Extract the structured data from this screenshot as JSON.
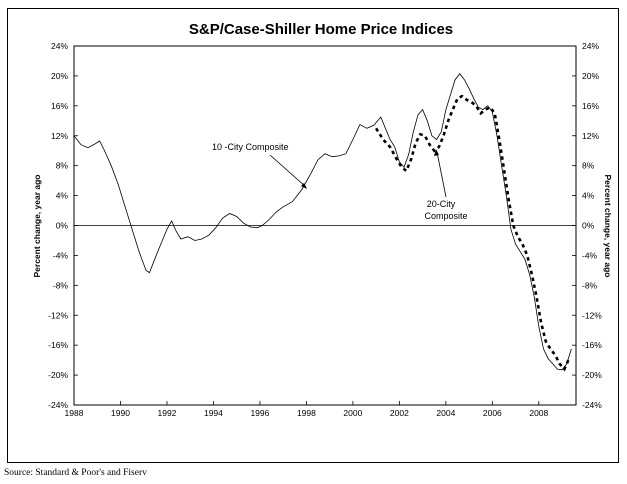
{
  "chart_data": {
    "type": "line",
    "title": "S&P/Case-Shiller Home Price Indices",
    "ylabel_left": "Percent change, year ago",
    "ylabel_right": "Percent change, year ago",
    "xlim": [
      1988,
      2009.6
    ],
    "ylim": [
      -24,
      24
    ],
    "x_ticks": [
      "1988",
      "1990",
      "1992",
      "1994",
      "1996",
      "1998",
      "2000",
      "2002",
      "2004",
      "2006",
      "2008"
    ],
    "y_ticks": [
      "24%",
      "20%",
      "16%",
      "12%",
      "8%",
      "4%",
      "0%",
      "-4%",
      "-8%",
      "-12%",
      "-16%",
      "-20%",
      "-24%"
    ],
    "grid": false,
    "series": [
      {
        "name": "10 -City Composite",
        "style": "solid",
        "x": [
          1988.0,
          1988.3,
          1988.6,
          1988.9,
          1989.1,
          1989.3,
          1989.6,
          1989.9,
          1990.2,
          1990.5,
          1990.8,
          1991.1,
          1991.25,
          1991.5,
          1991.8,
          1992.0,
          1992.2,
          1992.4,
          1992.6,
          1992.9,
          1993.2,
          1993.5,
          1993.8,
          1994.1,
          1994.4,
          1994.7,
          1995.0,
          1995.3,
          1995.6,
          1995.9,
          1996.1,
          1996.4,
          1996.7,
          1997.0,
          1997.4,
          1997.8,
          1998.2,
          1998.5,
          1998.8,
          1999.1,
          1999.4,
          1999.7,
          2000.0,
          2000.3,
          2000.6,
          2000.9,
          2001.2,
          2001.4,
          2001.6,
          2001.8,
          2002.0,
          2002.2,
          2002.4,
          2002.6,
          2002.8,
          2003.0,
          2003.2,
          2003.4,
          2003.6,
          2003.8,
          2004.0,
          2004.2,
          2004.4,
          2004.6,
          2004.8,
          2005.0,
          2005.2,
          2005.4,
          2005.6,
          2005.8,
          2006.0,
          2006.2,
          2006.4,
          2006.6,
          2006.8,
          2007.0,
          2007.2,
          2007.4,
          2007.6,
          2007.8,
          2008.0,
          2008.2,
          2008.4,
          2008.6,
          2008.8,
          2009.0,
          2009.2,
          2009.4
        ],
        "y": [
          12.0,
          10.8,
          10.4,
          10.9,
          11.3,
          10.1,
          8.0,
          5.5,
          2.5,
          -0.5,
          -3.5,
          -6.0,
          -6.3,
          -4.3,
          -2.0,
          -0.5,
          0.6,
          -0.8,
          -1.8,
          -1.5,
          -2.0,
          -1.8,
          -1.3,
          -0.3,
          1.0,
          1.6,
          1.2,
          0.3,
          -0.2,
          -0.3,
          0.0,
          0.8,
          1.8,
          2.5,
          3.2,
          4.8,
          7.0,
          8.8,
          9.6,
          9.2,
          9.3,
          9.6,
          11.5,
          13.5,
          13.0,
          13.4,
          14.5,
          13.0,
          11.5,
          10.5,
          8.5,
          7.8,
          9.5,
          12.5,
          14.8,
          15.5,
          14.0,
          12.0,
          11.5,
          12.5,
          15.5,
          17.5,
          19.5,
          20.3,
          19.5,
          18.3,
          17.0,
          15.8,
          15.5,
          16.0,
          15.2,
          12.0,
          8.0,
          4.0,
          -0.5,
          -2.5,
          -3.5,
          -4.5,
          -6.5,
          -9.5,
          -13.5,
          -16.5,
          -17.8,
          -18.5,
          -19.2,
          -19.3,
          -18.5,
          -16.5
        ]
      },
      {
        "name": "20-City Composite",
        "style": "dashed",
        "x": [
          2001.0,
          2001.3,
          2001.6,
          2001.9,
          2002.1,
          2002.3,
          2002.5,
          2002.7,
          2002.9,
          2003.1,
          2003.3,
          2003.5,
          2003.7,
          2003.9,
          2004.1,
          2004.3,
          2004.5,
          2004.7,
          2004.9,
          2005.1,
          2005.3,
          2005.5,
          2005.7,
          2005.9,
          2006.1,
          2006.3,
          2006.5,
          2006.7,
          2006.9,
          2007.1,
          2007.3,
          2007.5,
          2007.7,
          2007.9,
          2008.1,
          2008.3,
          2008.5,
          2008.7,
          2008.9,
          2009.1,
          2009.3
        ],
        "y": [
          13.0,
          11.5,
          10.5,
          8.8,
          7.8,
          7.3,
          8.8,
          11.0,
          12.2,
          12.0,
          10.8,
          10.0,
          10.5,
          12.0,
          14.0,
          15.5,
          17.0,
          17.3,
          16.8,
          16.5,
          16.0,
          15.0,
          15.5,
          15.8,
          15.0,
          11.5,
          7.5,
          3.5,
          0.0,
          -1.5,
          -2.5,
          -4.0,
          -6.5,
          -9.5,
          -13.0,
          -15.5,
          -16.5,
          -17.3,
          -18.5,
          -19.2,
          -17.8
        ]
      }
    ],
    "annotations": [
      {
        "text": "10 -City Composite"
      },
      {
        "text": "20-City"
      },
      {
        "text": "Composite"
      }
    ]
  },
  "source": "Source: Standard & Poor's and Fiserv"
}
